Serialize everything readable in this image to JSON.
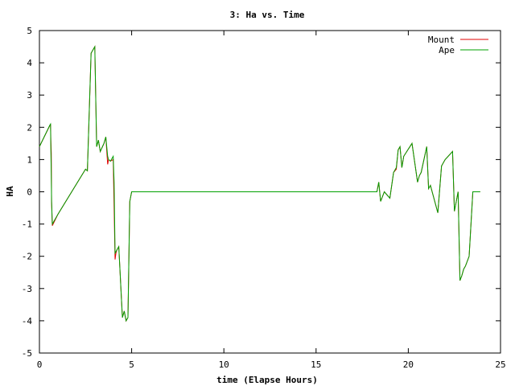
{
  "chart_data": {
    "type": "line",
    "title": "3: Ha vs. Time",
    "xlabel": "time (Elapse Hours)",
    "ylabel": "HA",
    "xlim": [
      0,
      25
    ],
    "ylim": [
      -5,
      5
    ],
    "xticks": [
      "0",
      "5",
      "10",
      "15",
      "20",
      "25"
    ],
    "yticks": [
      "5",
      "4",
      "3",
      "2",
      "1",
      "0",
      "-1",
      "-2",
      "-3",
      "-4",
      "-5"
    ],
    "grid": false,
    "legend_position": "top-right",
    "series": [
      {
        "name": "Mount",
        "color": "#e00000",
        "x": [
          0.0,
          0.6,
          0.62,
          0.64,
          0.66,
          0.7,
          1.0,
          2.5,
          2.6,
          2.8,
          3.0,
          3.1,
          3.2,
          3.3,
          3.5,
          3.6,
          3.7,
          3.75,
          3.85,
          4.0,
          4.1,
          4.15,
          4.2,
          4.3,
          4.5,
          4.6,
          4.7,
          4.8,
          4.9,
          5.0,
          5.1,
          5.2,
          5.3,
          18.3,
          18.4,
          18.5,
          18.7,
          19.0,
          19.2,
          19.35,
          19.45,
          19.55,
          19.65,
          19.75,
          20.2,
          20.5,
          20.6,
          20.7,
          21.0,
          21.1,
          21.2,
          21.6,
          21.8,
          22.0,
          22.4,
          22.5,
          22.7,
          22.8,
          22.9,
          23.0,
          23.1,
          23.3,
          23.5,
          23.7,
          23.8,
          23.9
        ],
        "y": [
          1.4,
          2.1,
          1.6,
          1.2,
          -0.3,
          -1.05,
          -0.7,
          0.7,
          0.65,
          4.3,
          4.5,
          1.4,
          1.6,
          1.25,
          1.5,
          1.7,
          0.85,
          1.0,
          0.95,
          1.0,
          -2.1,
          -1.9,
          -1.8,
          -1.7,
          -3.9,
          -3.7,
          -4.0,
          -3.9,
          -0.3,
          0.0,
          0.0,
          0.0,
          0.0,
          0.0,
          0.3,
          -0.3,
          0.0,
          -0.2,
          0.6,
          0.7,
          1.3,
          1.4,
          0.75,
          1.1,
          1.5,
          0.3,
          0.5,
          0.6,
          1.4,
          0.1,
          0.2,
          -0.65,
          0.8,
          1.0,
          1.25,
          -0.6,
          0.0,
          -2.75,
          -2.6,
          -2.4,
          -2.3,
          -2.0,
          0.0,
          0.0,
          0.0,
          0.0
        ]
      },
      {
        "name": "Ape",
        "color": "#00a000",
        "x": [
          0.0,
          0.55,
          0.6,
          0.62,
          0.64,
          0.66,
          0.7,
          1.0,
          2.5,
          2.6,
          2.8,
          3.0,
          3.1,
          3.2,
          3.3,
          3.5,
          3.6,
          3.7,
          3.75,
          3.85,
          4.0,
          4.05,
          4.1,
          4.15,
          4.2,
          4.3,
          4.5,
          4.6,
          4.7,
          4.8,
          4.9,
          5.0,
          5.1,
          5.2,
          5.3,
          18.3,
          18.4,
          18.5,
          18.7,
          19.0,
          19.2,
          19.35,
          19.45,
          19.55,
          19.65,
          19.75,
          20.2,
          20.5,
          20.6,
          20.7,
          21.0,
          21.1,
          21.2,
          21.6,
          21.8,
          22.0,
          22.4,
          22.5,
          22.7,
          22.8,
          22.9,
          23.0,
          23.1,
          23.3,
          23.5,
          23.7,
          23.8,
          23.9
        ],
        "y": [
          1.4,
          2.05,
          2.1,
          1.3,
          0.6,
          -0.3,
          -1.0,
          -0.7,
          0.7,
          0.65,
          4.3,
          4.5,
          1.4,
          1.6,
          1.25,
          1.5,
          1.7,
          1.1,
          1.0,
          0.95,
          1.1,
          0.3,
          -1.9,
          -1.85,
          -1.8,
          -1.7,
          -3.9,
          -3.7,
          -4.0,
          -3.9,
          -0.3,
          0.0,
          0.0,
          0.0,
          0.0,
          0.0,
          0.3,
          -0.3,
          0.0,
          -0.2,
          0.6,
          0.75,
          1.3,
          1.4,
          0.75,
          1.1,
          1.5,
          0.3,
          0.5,
          0.6,
          1.4,
          0.1,
          0.2,
          -0.65,
          0.8,
          1.0,
          1.25,
          -0.6,
          0.0,
          -2.75,
          -2.6,
          -2.4,
          -2.3,
          -2.0,
          0.0,
          0.0,
          0.0,
          0.0
        ]
      }
    ]
  }
}
